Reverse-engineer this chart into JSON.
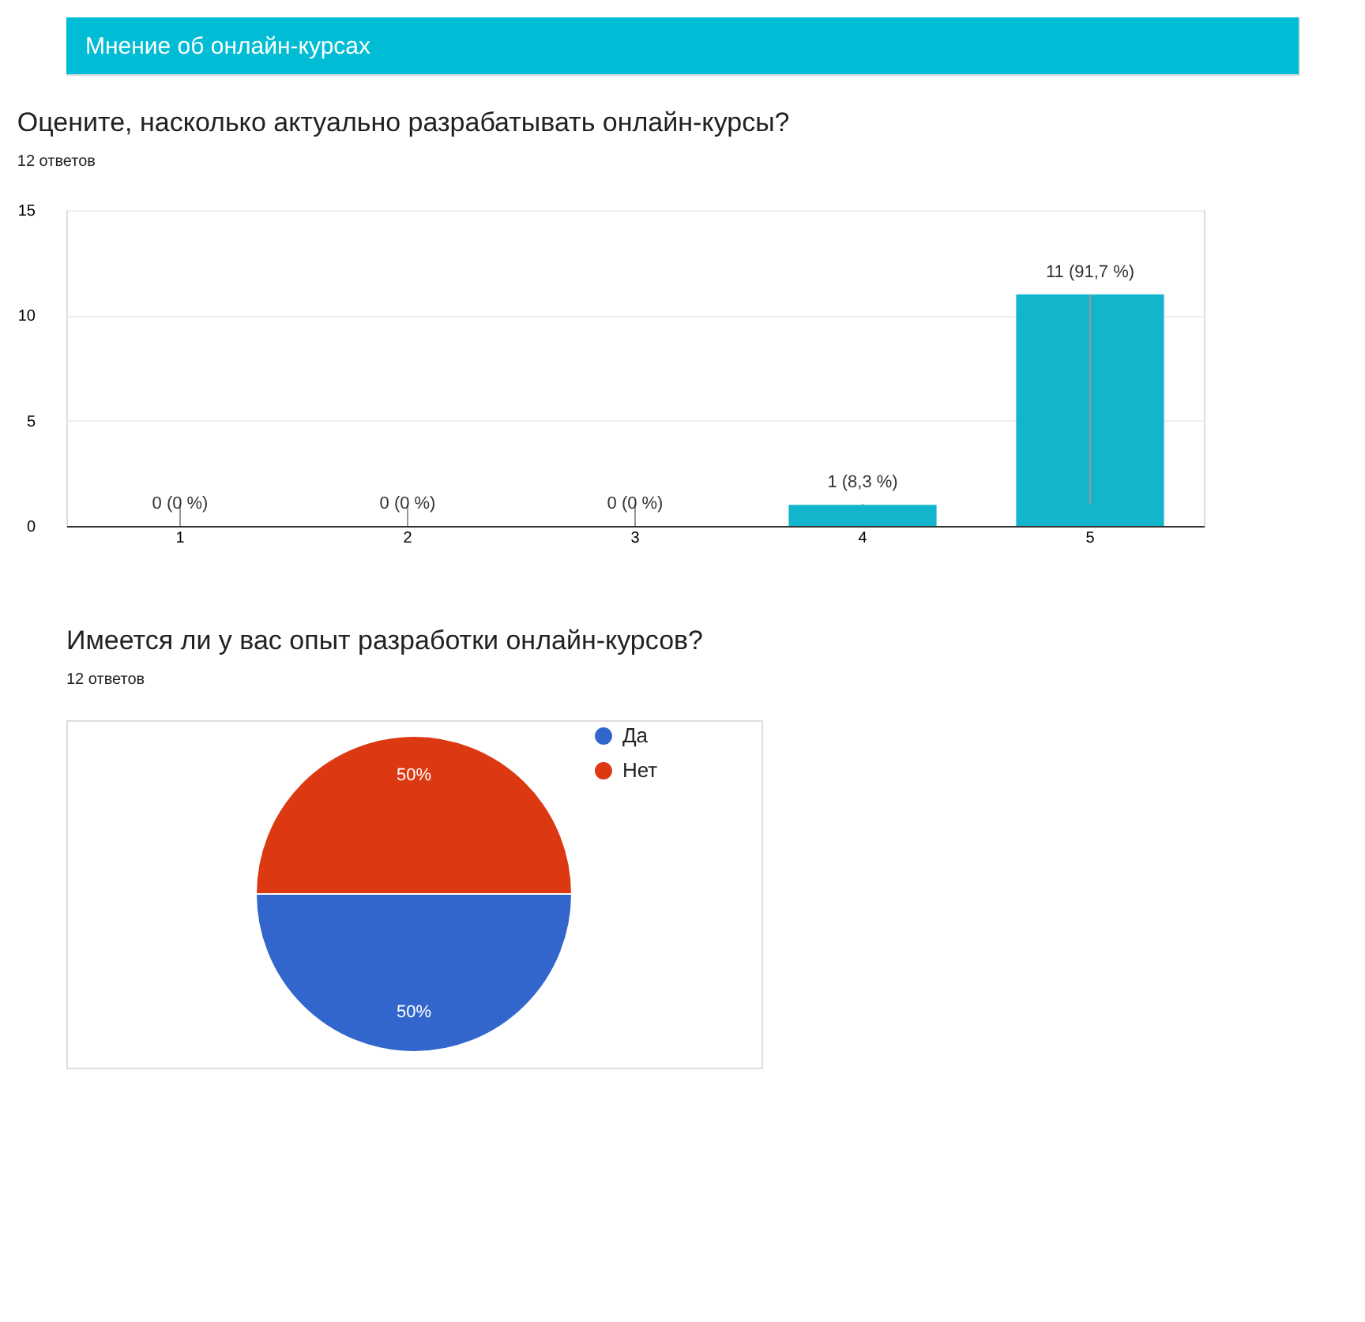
{
  "chart_data": [
    {
      "type": "bar",
      "title": "Оцените, насколько актуально разрабатывать онлайн-курсы?",
      "subtitle": "12 ответов",
      "annotations": [
        "Мнение об онлайн-курсах"
      ],
      "categories": [
        "1",
        "2",
        "3",
        "4",
        "5"
      ],
      "values": [
        0,
        0,
        0,
        1,
        11
      ],
      "color": "#12b5cb",
      "value_labels": [
        "0 (0 %)",
        "0 (0 %)",
        "0 (0 %)",
        "1 (8,3 %)",
        "11 (91,7 %)"
      ],
      "ylim": [
        0,
        15
      ],
      "yticks": [
        0,
        5,
        10,
        15
      ],
      "grid": "y"
    },
    {
      "type": "pie",
      "title": "Имеется ли у вас опыт разработки онлайн-курсов?",
      "subtitle": "12 ответов",
      "categories": [
        "Да",
        "Нет"
      ],
      "values": [
        50,
        50
      ],
      "colors": [
        "#3366cc",
        "#dc3912"
      ],
      "value_labels": [
        "50%",
        "50%"
      ],
      "legend": "top right"
    }
  ]
}
